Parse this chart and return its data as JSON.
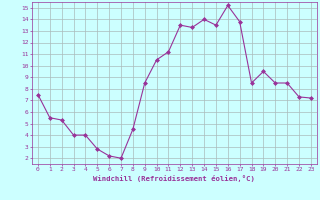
{
  "x": [
    0,
    1,
    2,
    3,
    4,
    5,
    6,
    7,
    8,
    9,
    10,
    11,
    12,
    13,
    14,
    15,
    16,
    17,
    18,
    19,
    20,
    21,
    22,
    23
  ],
  "y": [
    7.5,
    5.5,
    5.3,
    4.0,
    4.0,
    2.8,
    2.2,
    2.0,
    4.5,
    8.5,
    10.5,
    11.2,
    13.5,
    13.3,
    14.0,
    13.5,
    15.2,
    13.8,
    8.5,
    9.5,
    8.5,
    8.5,
    7.3,
    7.2
  ],
  "line_color": "#993399",
  "marker": "D",
  "marker_size": 2,
  "bg_color": "#ccffff",
  "grid_color": "#aabbbb",
  "xlabel": "Windchill (Refroidissement éolien,°C)",
  "ylabel": "",
  "xlim": [
    -0.5,
    23.5
  ],
  "ylim": [
    1.5,
    15.5
  ],
  "yticks": [
    2,
    3,
    4,
    5,
    6,
    7,
    8,
    9,
    10,
    11,
    12,
    13,
    14,
    15
  ],
  "xticks": [
    0,
    1,
    2,
    3,
    4,
    5,
    6,
    7,
    8,
    9,
    10,
    11,
    12,
    13,
    14,
    15,
    16,
    17,
    18,
    19,
    20,
    21,
    22,
    23
  ],
  "tick_color": "#993399",
  "label_color": "#993399",
  "spine_color": "#993399",
  "tick_fontsize": 4.5,
  "xlabel_fontsize": 5.2
}
